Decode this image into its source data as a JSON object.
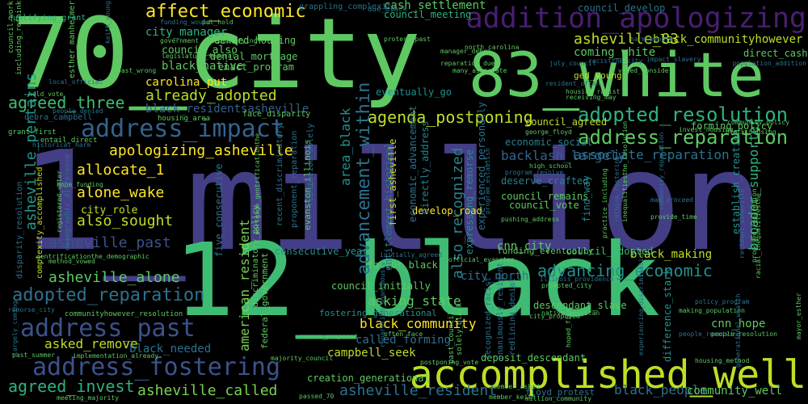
{
  "colors": {
    "background": "#000000",
    "palette": [
      "#7ad151",
      "#5ec962",
      "#3fbc73",
      "#2db27d",
      "#22a884",
      "#1f988b",
      "#21918c",
      "#26828e",
      "#2c728e",
      "#33638d",
      "#3b528b",
      "#433e85",
      "#472d7b",
      "#481f70",
      "#fde725",
      "#bddf26"
    ]
  },
  "words": [
    {
      "text": "70_city",
      "color": "#5ec962"
    },
    {
      "text": "1_million",
      "color": "#433e85"
    },
    {
      "text": "12_black",
      "color": "#3fbc73"
    },
    {
      "text": "83_white",
      "color": "#5ec962"
    },
    {
      "text": "accomplished_well",
      "color": "#bddf26"
    },
    {
      "text": "addition_apologizing",
      "color": "#481f70"
    },
    {
      "text": "address_impact",
      "color": "#33638d"
    },
    {
      "text": "address_past",
      "color": "#3b528b"
    },
    {
      "text": "address_fostering",
      "color": "#3b528b"
    },
    {
      "text": "address_reparation",
      "color": "#5ec962"
    },
    {
      "text": "adopted_resolution",
      "color": "#2db27d"
    },
    {
      "text": "adopted_reparation",
      "color": "#2c728e"
    },
    {
      "text": "affect_economic",
      "color": "#fde725"
    },
    {
      "text": "agenda_postponing",
      "color": "#bddf26"
    },
    {
      "text": "advancement_within",
      "color": "#2c728e"
    },
    {
      "text": "advancing_economic",
      "color": "#21918c"
    },
    {
      "text": "agreed_three",
      "color": "#3fbc73"
    },
    {
      "text": "agreed_invest",
      "color": "#2db27d"
    },
    {
      "text": "apologizing_asheville",
      "color": "#fde725"
    },
    {
      "text": "allocate_1",
      "color": "#fde725"
    },
    {
      "text": "alone_wake",
      "color": "#fde725"
    },
    {
      "text": "also_sought",
      "color": "#bddf26"
    },
    {
      "text": "also_recognized",
      "color": "#26828e"
    },
    {
      "text": "already_adopted",
      "color": "#bddf26"
    },
    {
      "text": "asheville_83",
      "color": "#bddf26"
    },
    {
      "text": "asheville_past",
      "color": "#3b528b"
    },
    {
      "text": "asheville_alone",
      "color": "#5ec962"
    },
    {
      "text": "asheville_called",
      "color": "#7ad151"
    },
    {
      "text": "asheville_resident",
      "color": "#2c728e"
    },
    {
      "text": "asheville_pertains",
      "color": "#1f988b"
    },
    {
      "text": "asking_state",
      "color": "#5ec962"
    },
    {
      "text": "asked_remove",
      "color": "#bddf26"
    },
    {
      "text": "associate_reparation",
      "color": "#2c728e"
    },
    {
      "text": "backlash_largely",
      "color": "#33638d"
    },
    {
      "text": "black_community",
      "color": "#fde725"
    },
    {
      "text": "black_communityhowever",
      "color": "#bddf26"
    },
    {
      "text": "black_native",
      "color": "#5ec962"
    },
    {
      "text": "black_needed",
      "color": "#2c728e"
    },
    {
      "text": "black_making",
      "color": "#bddf26"
    },
    {
      "text": "black_people",
      "color": "#2c728e"
    },
    {
      "text": "black_residentsasheville",
      "color": "#33638d"
    },
    {
      "text": "broader_supporter",
      "color": "#2db27d"
    },
    {
      "text": "american_resident",
      "color": "#7ad151"
    },
    {
      "text": "area_black",
      "color": "#21918c"
    },
    {
      "text": "called_forming",
      "color": "#2c728e"
    },
    {
      "text": "campbell_seek",
      "color": "#bddf26"
    },
    {
      "text": "carolina_put",
      "color": "#fde725"
    },
    {
      "text": "cash_settlement",
      "color": "#5ec962"
    },
    {
      "text": "city_manager",
      "color": "#2db27d"
    },
    {
      "text": "city_north",
      "color": "#2c728e"
    },
    {
      "text": "cnn_city",
      "color": "#5ec962"
    },
    {
      "text": "cnn_hope",
      "color": "#5ec962"
    },
    {
      "text": "coming_white",
      "color": "#5ec962"
    },
    {
      "text": "community_well",
      "color": "#5ec962"
    },
    {
      "text": "council_also",
      "color": "#5ec962"
    },
    {
      "text": "council_agreed",
      "color": "#bddf26"
    },
    {
      "text": "council_adopted",
      "color": "#3fbc73"
    },
    {
      "text": "council_initially",
      "color": "#5ec962"
    },
    {
      "text": "council_meeting",
      "color": "#2db27d"
    },
    {
      "text": "council_develop",
      "color": "#2c728e"
    },
    {
      "text": "council_remains",
      "color": "#5ec962"
    },
    {
      "text": "council_vote",
      "color": "#5ec962"
    },
    {
      "text": "creation_generational",
      "color": "#5ec962"
    },
    {
      "text": "consecutive_year",
      "color": "#21918c"
    },
    {
      "text": "denial_mortgage",
      "color": "#5ec962"
    },
    {
      "text": "denied_housing",
      "color": "#5ec962"
    },
    {
      "text": "enact_program",
      "color": "#5ec962"
    },
    {
      "text": "deposit_descendant",
      "color": "#5ec962"
    },
    {
      "text": "descendant_slave",
      "color": "#5ec962"
    },
    {
      "text": "deserve_crafted",
      "color": "#26828e"
    },
    {
      "text": "develop_road",
      "color": "#fde725"
    },
    {
      "text": "difference_stark",
      "color": "#21918c"
    },
    {
      "text": "directly_address",
      "color": "#26828e"
    },
    {
      "text": "economic_social",
      "color": "#26828e"
    },
    {
      "text": "eventually_go",
      "color": "#21918c"
    },
    {
      "text": "expressing_remorse",
      "color": "#21918c"
    },
    {
      "text": "establish_creation",
      "color": "#21918c"
    },
    {
      "text": "factor_black",
      "color": "#5ec962"
    },
    {
      "text": "federal_government",
      "color": "#5ec962"
    },
    {
      "text": "find_way",
      "color": "#26828e"
    },
    {
      "text": "first_asheville",
      "color": "#bddf26"
    },
    {
      "text": "five_consecutive",
      "color": "#2c728e"
    },
    {
      "text": "floyd_protest",
      "color": "#2c728e"
    },
    {
      "text": "forming_policy",
      "color": "#5ec962"
    },
    {
      "text": "fostering_generational",
      "color": "#21918c"
    },
    {
      "text": "funding_eventually",
      "color": "#5ec962"
    },
    {
      "text": "ged_young",
      "color": "#bddf26"
    },
    {
      "text": "grappling_complexity",
      "color": "#2c728e"
    },
    {
      "text": "qualifying_grant",
      "color": "#2db27d"
    },
    {
      "text": "esther_manheimer",
      "color": "#5ec962"
    },
    {
      "text": "face_disparity",
      "color": "#5ec962"
    },
    {
      "text": "housing_area",
      "color": "#5ec962"
    },
    {
      "text": "debra_campbell",
      "color": "#2c728e"
    },
    {
      "text": "legislature_federal",
      "color": "#5ec962"
    },
    {
      "text": "government_samequalifying",
      "color": "#5ec962"
    },
    {
      "text": "funding_would",
      "color": "#2c728e"
    },
    {
      "text": "put_hold",
      "color": "#5ec962"
    },
    {
      "text": "community_policy",
      "color": "#5ec962"
    },
    {
      "text": "black_housing",
      "color": "#5ec962"
    },
    {
      "text": "city_role",
      "color": "#bddf26"
    },
    {
      "text": "hope_funding",
      "color": "#5ec962"
    },
    {
      "text": "high_school",
      "color": "#5ec962"
    },
    {
      "text": "program_resolve",
      "color": "#2c728e"
    },
    {
      "text": "grant_first",
      "color": "#5ec962"
    },
    {
      "text": "hold_vote",
      "color": "#5ec962"
    },
    {
      "text": "local_official",
      "color": "#2c728e"
    },
    {
      "text": "past_wrong",
      "color": "#5ec962"
    },
    {
      "text": "people_denied",
      "color": "#2c728e"
    },
    {
      "text": "entail_direct",
      "color": "#5ec962"
    },
    {
      "text": "historical_harm",
      "color": "#2c728e"
    },
    {
      "text": "registered_voter",
      "color": "#5ec962"
    },
    {
      "text": "mortgage_gentrificationthe",
      "color": "#5ec962"
    },
    {
      "text": "gentrificationthe_demographic",
      "color": "#5ec962"
    },
    {
      "text": "demographic_difference",
      "color": "#2c728e"
    },
    {
      "text": "disparity_resolution",
      "color": "#2c728e"
    },
    {
      "text": "complexity_accomplished",
      "color": "#bddf26"
    },
    {
      "text": "method_vowed",
      "color": "#5ec962"
    },
    {
      "text": "remorse_city",
      "color": "#2c728e"
    },
    {
      "text": "largely_coming",
      "color": "#2c728e"
    },
    {
      "text": "past_summer",
      "color": "#5ec962"
    },
    {
      "text": "implementation_already",
      "color": "#5ec962"
    },
    {
      "text": "meeting_majority",
      "color": "#5ec962"
    },
    {
      "text": "communityhowever_resolution",
      "color": "#5ec962"
    },
    {
      "text": "discriminatory_policy",
      "color": "#5ec962"
    },
    {
      "text": "majority_council",
      "color": "#5ec962"
    },
    {
      "text": "evanston_illinois",
      "color": "#5ec962"
    },
    {
      "text": "proponent_reparation",
      "color": "#2c728e"
    },
    {
      "text": "entitlement_historical",
      "color": "#2c728e"
    },
    {
      "text": "recent_discriminatory",
      "color": "#2c728e"
    },
    {
      "text": "reparation_solely",
      "color": "#2c728e"
    },
    {
      "text": "economic_advancement",
      "color": "#2c728e"
    },
    {
      "text": "experienced_personally",
      "color": "#2c728e"
    },
    {
      "text": "remove_proposed",
      "color": "#5ec962"
    },
    {
      "text": "often_face",
      "color": "#5ec962"
    },
    {
      "text": "million_community",
      "color": "#5ec962"
    },
    {
      "text": "member_keith",
      "color": "#5ec962"
    },
    {
      "text": "member_asked",
      "color": "#5ec962"
    },
    {
      "text": "passed_70",
      "color": "#5ec962"
    },
    {
      "text": "postponing_vote",
      "color": "#5ec962"
    },
    {
      "text": "native_american",
      "color": "#5ec962"
    },
    {
      "text": "making_population",
      "color": "#5ec962"
    },
    {
      "text": "people_receiving",
      "color": "#2c728e"
    },
    {
      "text": "policy_program",
      "color": "#2c728e"
    },
    {
      "text": "housing_method",
      "color": "#5ec962"
    },
    {
      "text": "prompted_city",
      "color": "#5ec962"
    },
    {
      "text": "illinois_providence",
      "color": "#2c728e"
    },
    {
      "text": "population_addition",
      "color": "#2c728e"
    },
    {
      "text": "direct_cash",
      "color": "#5ec962"
    },
    {
      "text": "impact_slavery",
      "color": "#2c728e"
    },
    {
      "text": "july_council",
      "color": "#2c728e"
    },
    {
      "text": "housing_racist",
      "color": "#5ec962"
    },
    {
      "text": "receiving_may",
      "color": "#5ec962"
    },
    {
      "text": "resident_often",
      "color": "#2c728e"
    },
    {
      "text": "george_floyd",
      "color": "#5ec962"
    },
    {
      "text": "invest_housing",
      "color": "#5ec962"
    },
    {
      "text": "provide_time",
      "color": "#5ec962"
    },
    {
      "text": "map_proceed",
      "color": "#2c728e"
    },
    {
      "text": "official_evanston",
      "color": "#5ec962"
    },
    {
      "text": "pushing_address",
      "color": "#5ec962"
    },
    {
      "text": "many_associate",
      "color": "#5ec962"
    },
    {
      "text": "reparation_due",
      "color": "#5ec962"
    },
    {
      "text": "manager_debra",
      "color": "#5ec962"
    },
    {
      "text": "north_carolina",
      "color": "#5ec962"
    },
    {
      "text": "protest_past",
      "color": "#5ec962"
    },
    {
      "text": "due_black",
      "color": "#2c728e"
    },
    {
      "text": "keith_young",
      "color": "#2c728e"
    },
    {
      "text": "council_work",
      "color": "#5ec962"
    },
    {
      "text": "including_rethink",
      "color": "#5ec962"
    },
    {
      "text": "racistthe_city",
      "color": "#2c728e"
    },
    {
      "text": "harm_people",
      "color": "#2c728e"
    },
    {
      "text": "initially_agreed",
      "color": "#2c728e"
    },
    {
      "text": "vowed_consider",
      "color": "#5ec962"
    },
    {
      "text": "city_proposed",
      "color": "#5ec962"
    },
    {
      "text": "redlining_denial",
      "color": "#2c728e"
    },
    {
      "text": "recognized_racist",
      "color": "#2c728e"
    },
    {
      "text": "hoped_find",
      "color": "#5ec962"
    },
    {
      "text": "past_council",
      "color": "#5ec962"
    },
    {
      "text": "solely_black",
      "color": "#5ec962"
    },
    {
      "text": "unanimously_resident",
      "color": "#2c728e"
    },
    {
      "text": "proposed_reparation",
      "color": "#5ec962"
    },
    {
      "text": "resident_asheville",
      "color": "#2c728e"
    },
    {
      "text": "racial_inequalitiesthe",
      "color": "#5ec962"
    },
    {
      "text": "community_reparation",
      "color": "#2c728e"
    },
    {
      "text": "inequalitiesthe_resolution",
      "color": "#5ec962"
    },
    {
      "text": "practice_including",
      "color": "#5ec962"
    },
    {
      "text": "rethink_fostering",
      "color": "#2c728e"
    },
    {
      "text": "mayor_esther",
      "color": "#5ec962"
    },
    {
      "text": "people_resolution",
      "color": "#5ec962"
    },
    {
      "text": "reparation_unanimously",
      "color": "#2c728e"
    },
    {
      "text": "generational_wealth",
      "color": "#2c728e"
    },
    {
      "text": "program_establish",
      "color": "#2c728e"
    },
    {
      "text": "experiencing_discrimination",
      "color": "#2c728e"
    }
  ]
}
